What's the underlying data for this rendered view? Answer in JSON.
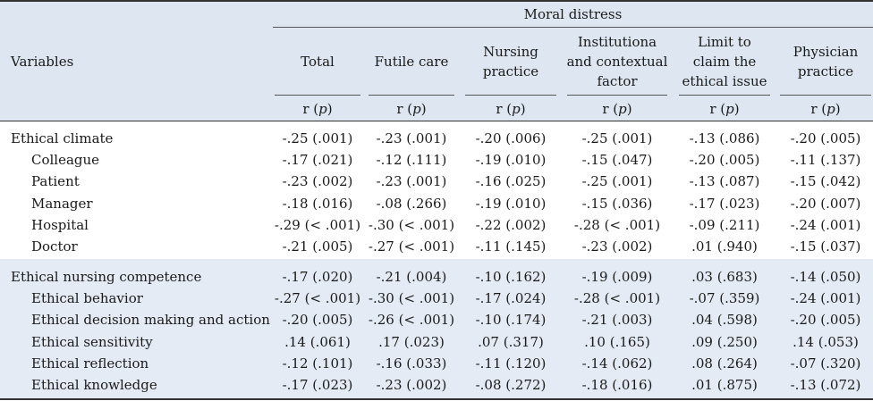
{
  "header": {
    "group_title": "Moral distress",
    "variables_label": "Variables",
    "columns": [
      {
        "label": "Total",
        "stat": "r",
        "p": "p"
      },
      {
        "label": "Futile care",
        "stat": "r",
        "p": "p"
      },
      {
        "label": "Nursing practice",
        "stat": "r",
        "p": "p"
      },
      {
        "label": "Institutiona and contextual factor",
        "stat": "r",
        "p": "p"
      },
      {
        "label": "Limit to claim the ethical issue",
        "stat": "r",
        "p": "p"
      },
      {
        "label": "Physician practice",
        "stat": "r",
        "p": "p"
      }
    ]
  },
  "sections": [
    {
      "rows": [
        {
          "label": "Ethical climate",
          "indent": false,
          "values": [
            "-.25 (.001)",
            "-.23 (.001)",
            "-.20 (.006)",
            "-.25 (.001)",
            "-.13 (.086)",
            "-.20 (.005)"
          ]
        },
        {
          "label": "Colleague",
          "indent": true,
          "values": [
            "-.17 (.021)",
            "-.12 (.111)",
            "-.19 (.010)",
            "-.15 (.047)",
            "-.20 (.005)",
            "-.11 (.137)"
          ]
        },
        {
          "label": "Patient",
          "indent": true,
          "values": [
            "-.23 (.002)",
            "-.23 (.001)",
            "-.16 (.025)",
            "-.25 (.001)",
            "-.13 (.087)",
            "-.15 (.042)"
          ]
        },
        {
          "label": "Manager",
          "indent": true,
          "values": [
            "-.18 (.016)",
            "-.08 (.266)",
            "-.19 (.010)",
            "-.15 (.036)",
            "-.17 (.023)",
            "-.20 (.007)"
          ]
        },
        {
          "label": "Hospital",
          "indent": true,
          "values": [
            "-.29 (< .001)",
            "-.30 (< .001)",
            "-.22 (.002)",
            "-.28 (< .001)",
            "-.09 (.211)",
            "-.24 (.001)"
          ]
        },
        {
          "label": "Doctor",
          "indent": true,
          "values": [
            "-.21 (.005)",
            "-.27 (< .001)",
            "-.11 (.145)",
            "-.23 (.002)",
            ".01 (.940)",
            "-.15 (.037)"
          ]
        }
      ]
    },
    {
      "rows": [
        {
          "label": "Ethical nursing competence",
          "indent": false,
          "values": [
            "-.17 (.020)",
            "-.21 (.004)",
            "-.10 (.162)",
            "-.19 (.009)",
            ".03 (.683)",
            "-.14 (.050)"
          ]
        },
        {
          "label": "Ethical behavior",
          "indent": true,
          "values": [
            "-.27 (< .001)",
            "-.30 (< .001)",
            "-.17 (.024)",
            "-.28 (< .001)",
            "-.07 (.359)",
            "-.24 (.001)"
          ]
        },
        {
          "label": "Ethical decision making and action",
          "indent": true,
          "values": [
            "-.20 (.005)",
            "-.26 (< .001)",
            "-.10 (.174)",
            "-.21 (.003)",
            ".04 (.598)",
            "-.20 (.005)"
          ]
        },
        {
          "label": "Ethical sensitivity",
          "indent": true,
          "values": [
            ".14 (.061)",
            ".17 (.023)",
            ".07 (.317)",
            ".10 (.165)",
            ".09 (.250)",
            ".14 (.053)"
          ]
        },
        {
          "label": "Ethical reflection",
          "indent": true,
          "values": [
            "-.12 (.101)",
            "-.16 (.033)",
            "-.11 (.120)",
            "-.14 (.062)",
            ".08 (.264)",
            "-.07 (.320)"
          ]
        },
        {
          "label": "Ethical knowledge",
          "indent": true,
          "values": [
            "-.17 (.023)",
            "-.23 (.002)",
            "-.08 (.272)",
            "-.18 (.016)",
            ".01 (.875)",
            "-.13 (.072)"
          ]
        }
      ]
    }
  ],
  "colors": {
    "header_bg": "#dde6f1",
    "section2_bg": "#e4ebf4"
  }
}
